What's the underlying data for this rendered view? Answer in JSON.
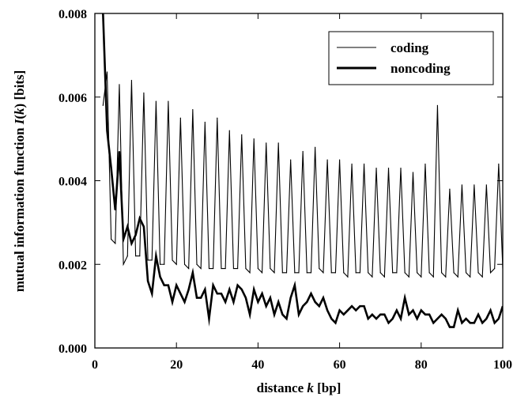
{
  "chart_data": {
    "type": "line",
    "title": "",
    "xlabel": {
      "pre": "distance ",
      "var": "k",
      "post": " [bp]"
    },
    "ylabel": {
      "pre": "mutual information function ",
      "var": "I",
      "mid": "(",
      "var2": "k",
      "post": ") [bits]"
    },
    "xlim": [
      0,
      100
    ],
    "ylim": [
      0,
      0.008
    ],
    "xticks": [
      0,
      20,
      40,
      60,
      80,
      100
    ],
    "xtick_labels": [
      "0",
      "20",
      "40",
      "60",
      "80",
      "100"
    ],
    "yticks": [
      0.0,
      0.002,
      0.004,
      0.006,
      0.008
    ],
    "ytick_labels": [
      "0.000",
      "0.002",
      "0.004",
      "0.006",
      "0.008"
    ],
    "grid": false,
    "legend_position": "top-right",
    "series": [
      {
        "name": "coding",
        "style": "thin",
        "color": "#000000",
        "x": [
          2,
          3,
          4,
          5,
          6,
          7,
          8,
          9,
          10,
          11,
          12,
          13,
          14,
          15,
          16,
          17,
          18,
          19,
          20,
          21,
          22,
          23,
          24,
          25,
          26,
          27,
          28,
          29,
          30,
          31,
          32,
          33,
          34,
          35,
          36,
          37,
          38,
          39,
          40,
          41,
          42,
          43,
          44,
          45,
          46,
          47,
          48,
          49,
          50,
          51,
          52,
          53,
          54,
          55,
          56,
          57,
          58,
          59,
          60,
          61,
          62,
          63,
          64,
          65,
          66,
          67,
          68,
          69,
          70,
          71,
          72,
          73,
          74,
          75,
          76,
          77,
          78,
          79,
          80,
          81,
          82,
          83,
          84,
          85,
          86,
          87,
          88,
          89,
          90,
          91,
          92,
          93,
          94,
          95,
          96,
          97,
          98,
          99,
          100
        ],
        "y": [
          0.0058,
          0.0066,
          0.0026,
          0.0025,
          0.0063,
          0.002,
          0.0022,
          0.0064,
          0.0022,
          0.0022,
          0.0061,
          0.0021,
          0.0021,
          0.0059,
          0.002,
          0.002,
          0.0059,
          0.0021,
          0.002,
          0.0055,
          0.002,
          0.0019,
          0.0057,
          0.002,
          0.0019,
          0.0054,
          0.0019,
          0.0019,
          0.0055,
          0.0019,
          0.0019,
          0.0052,
          0.0019,
          0.0019,
          0.0051,
          0.0019,
          0.0018,
          0.005,
          0.0019,
          0.0018,
          0.0049,
          0.0019,
          0.0018,
          0.0049,
          0.0018,
          0.0018,
          0.0045,
          0.0018,
          0.0018,
          0.0047,
          0.0018,
          0.0018,
          0.0048,
          0.0019,
          0.0018,
          0.0045,
          0.0018,
          0.0018,
          0.0045,
          0.0018,
          0.0017,
          0.0044,
          0.0018,
          0.0018,
          0.0044,
          0.0018,
          0.0017,
          0.0043,
          0.0018,
          0.0017,
          0.0043,
          0.0018,
          0.0018,
          0.0043,
          0.0018,
          0.0017,
          0.0042,
          0.0018,
          0.0017,
          0.0044,
          0.0018,
          0.0017,
          0.0058,
          0.0018,
          0.0017,
          0.0038,
          0.0018,
          0.0017,
          0.0039,
          0.0018,
          0.0017,
          0.0039,
          0.0018,
          0.0017,
          0.0039,
          0.0018,
          0.0019,
          0.0044,
          0.0019
        ]
      },
      {
        "name": "noncoding",
        "style": "thick",
        "color": "#000000",
        "x": [
          2,
          3,
          4,
          5,
          6,
          7,
          8,
          9,
          10,
          11,
          12,
          13,
          14,
          15,
          16,
          17,
          18,
          19,
          20,
          21,
          22,
          23,
          24,
          25,
          26,
          27,
          28,
          29,
          30,
          31,
          32,
          33,
          34,
          35,
          36,
          37,
          38,
          39,
          40,
          41,
          42,
          43,
          44,
          45,
          46,
          47,
          48,
          49,
          50,
          51,
          52,
          53,
          54,
          55,
          56,
          57,
          58,
          59,
          60,
          61,
          62,
          63,
          64,
          65,
          66,
          67,
          68,
          69,
          70,
          71,
          72,
          73,
          74,
          75,
          76,
          77,
          78,
          79,
          80,
          81,
          82,
          83,
          84,
          85,
          86,
          87,
          88,
          89,
          90,
          91,
          92,
          93,
          94,
          95,
          96,
          97,
          98,
          99,
          100
        ],
        "y": [
          0.008,
          0.0052,
          0.0043,
          0.0033,
          0.0047,
          0.0026,
          0.0029,
          0.0025,
          0.0027,
          0.0031,
          0.0029,
          0.0016,
          0.0013,
          0.0022,
          0.0017,
          0.0015,
          0.0015,
          0.0011,
          0.0015,
          0.0013,
          0.0011,
          0.0014,
          0.0018,
          0.0012,
          0.0012,
          0.0014,
          0.0007,
          0.0015,
          0.0013,
          0.0013,
          0.0011,
          0.0014,
          0.0011,
          0.0015,
          0.0014,
          0.0012,
          0.0008,
          0.0014,
          0.0011,
          0.0013,
          0.001,
          0.0012,
          0.0008,
          0.0011,
          0.0008,
          0.0007,
          0.0012,
          0.0015,
          0.0008,
          0.001,
          0.0011,
          0.0013,
          0.0011,
          0.001,
          0.0012,
          0.0009,
          0.0007,
          0.0006,
          0.0009,
          0.0008,
          0.0009,
          0.001,
          0.0009,
          0.001,
          0.001,
          0.0007,
          0.0008,
          0.0007,
          0.0008,
          0.0008,
          0.0006,
          0.0007,
          0.0009,
          0.0007,
          0.0012,
          0.0008,
          0.0009,
          0.0007,
          0.0009,
          0.0008,
          0.0008,
          0.0006,
          0.0007,
          0.0008,
          0.0007,
          0.0005,
          0.0005,
          0.0009,
          0.0006,
          0.0007,
          0.0006,
          0.0006,
          0.0008,
          0.0006,
          0.0007,
          0.0009,
          0.0006,
          0.0007,
          0.001
        ]
      }
    ]
  }
}
